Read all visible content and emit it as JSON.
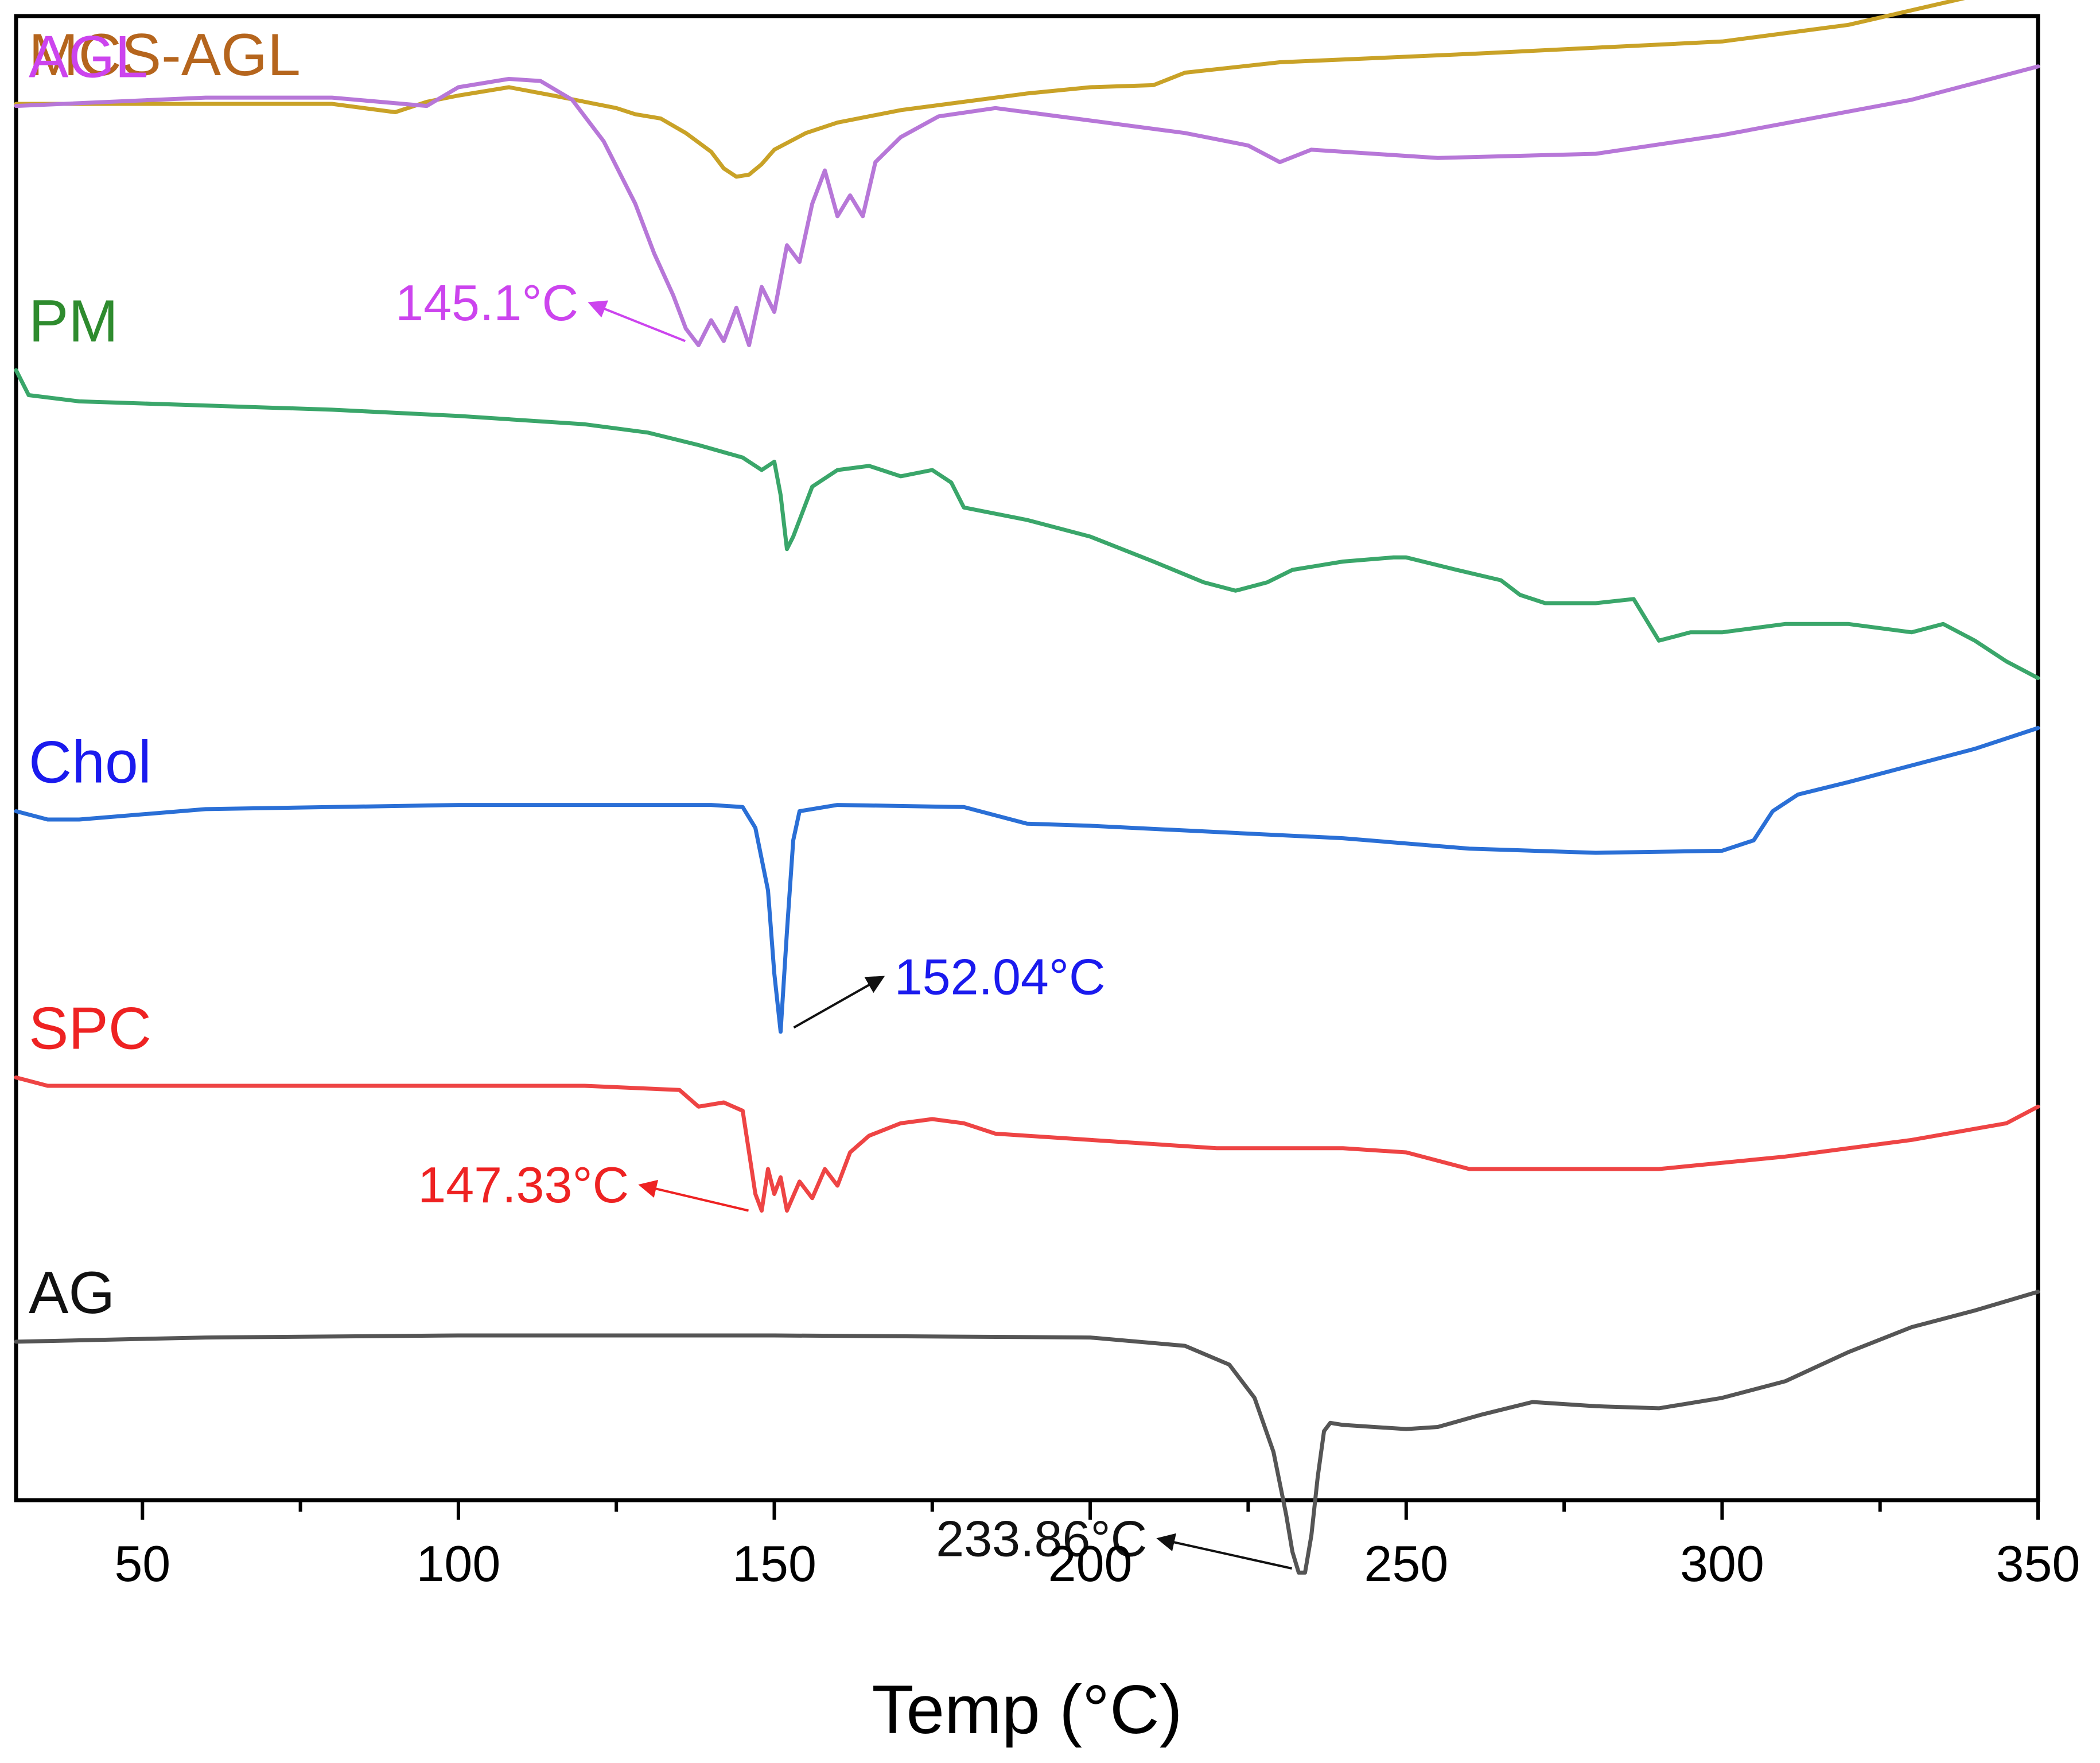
{
  "chart_data": {
    "type": "line",
    "title": "",
    "xlabel": "Temp (°C)",
    "ylabel": "",
    "xlim": [
      30,
      350
    ],
    "xticks": [
      50,
      100,
      150,
      200,
      250,
      300,
      350
    ],
    "yaxis_units": "relative offset (stacked DSC thermograms, no y scale shown)",
    "series": [
      {
        "name": "MCS-AGL",
        "color": "#c9a227",
        "label_color": "#b5651d",
        "points": [
          [
            30,
            0.4
          ],
          [
            80,
            0.4
          ],
          [
            90,
            0.2
          ],
          [
            95,
            0.45
          ],
          [
            100,
            0.6
          ],
          [
            108,
            0.8
          ],
          [
            115,
            0.6
          ],
          [
            120,
            0.45
          ],
          [
            125,
            0.3
          ],
          [
            128,
            0.15
          ],
          [
            132,
            0.05
          ],
          [
            136,
            -0.3
          ],
          [
            140,
            -0.75
          ],
          [
            142,
            -1.15
          ],
          [
            144,
            -1.35
          ],
          [
            146,
            -1.3
          ],
          [
            148,
            -1.05
          ],
          [
            150,
            -0.7
          ],
          [
            155,
            -0.3
          ],
          [
            160,
            -0.05
          ],
          [
            170,
            0.25
          ],
          [
            180,
            0.45
          ],
          [
            190,
            0.65
          ],
          [
            200,
            0.8
          ],
          [
            210,
            0.85
          ],
          [
            215,
            1.15
          ],
          [
            230,
            1.4
          ],
          [
            260,
            1.6
          ],
          [
            280,
            1.75
          ],
          [
            300,
            1.9
          ],
          [
            320,
            2.3
          ],
          [
            340,
            3.0
          ],
          [
            350,
            3.5
          ]
        ]
      },
      {
        "name": "AGL",
        "color": "#b777d8",
        "label_color": "#cc44ee",
        "points": [
          [
            30,
            0.35
          ],
          [
            60,
            0.55
          ],
          [
            80,
            0.55
          ],
          [
            95,
            0.35
          ],
          [
            100,
            0.8
          ],
          [
            108,
            1.0
          ],
          [
            113,
            0.95
          ],
          [
            118,
            0.5
          ],
          [
            123,
            -0.5
          ],
          [
            128,
            -2.0
          ],
          [
            131,
            -3.2
          ],
          [
            134,
            -4.2
          ],
          [
            136,
            -5.0
          ],
          [
            138,
            -5.4
          ],
          [
            140,
            -4.8
          ],
          [
            142,
            -5.3
          ],
          [
            144,
            -4.5
          ],
          [
            146,
            -5.4
          ],
          [
            148,
            -4.0
          ],
          [
            150,
            -4.6
          ],
          [
            152,
            -3.0
          ],
          [
            154,
            -3.4
          ],
          [
            156,
            -2.0
          ],
          [
            158,
            -1.2
          ],
          [
            160,
            -2.3
          ],
          [
            162,
            -1.8
          ],
          [
            164,
            -2.3
          ],
          [
            166,
            -1.0
          ],
          [
            170,
            -0.4
          ],
          [
            176,
            0.1
          ],
          [
            185,
            0.3
          ],
          [
            200,
            0.0
          ],
          [
            215,
            -0.3
          ],
          [
            225,
            -0.6
          ],
          [
            230,
            -1.0
          ],
          [
            235,
            -0.7
          ],
          [
            255,
            -0.9
          ],
          [
            280,
            -0.8
          ],
          [
            300,
            -0.35
          ],
          [
            330,
            0.5
          ],
          [
            350,
            1.3
          ]
        ]
      },
      {
        "name": "PM",
        "color": "#3aa66a",
        "label_color": "#2e8b2e",
        "points": [
          [
            30,
            -6.0
          ],
          [
            32,
            -6.6
          ],
          [
            40,
            -6.75
          ],
          [
            60,
            -6.85
          ],
          [
            80,
            -6.95
          ],
          [
            100,
            -7.1
          ],
          [
            120,
            -7.3
          ],
          [
            130,
            -7.5
          ],
          [
            138,
            -7.8
          ],
          [
            145,
            -8.1
          ],
          [
            148,
            -8.4
          ],
          [
            150,
            -8.2
          ],
          [
            151,
            -9.0
          ],
          [
            152,
            -10.3
          ],
          [
            153,
            -10.0
          ],
          [
            156,
            -8.8
          ],
          [
            160,
            -8.4
          ],
          [
            165,
            -8.3
          ],
          [
            170,
            -8.55
          ],
          [
            175,
            -8.4
          ],
          [
            178,
            -8.7
          ],
          [
            180,
            -9.3
          ],
          [
            190,
            -9.6
          ],
          [
            200,
            -10.0
          ],
          [
            210,
            -10.6
          ],
          [
            218,
            -11.1
          ],
          [
            223,
            -11.3
          ],
          [
            228,
            -11.1
          ],
          [
            232,
            -10.8
          ],
          [
            240,
            -10.6
          ],
          [
            248,
            -10.5
          ],
          [
            250,
            -10.5
          ],
          [
            258,
            -10.8
          ],
          [
            265,
            -11.05
          ],
          [
            268,
            -11.4
          ],
          [
            272,
            -11.6
          ],
          [
            280,
            -11.6
          ],
          [
            286,
            -11.5
          ],
          [
            290,
            -12.5
          ],
          [
            295,
            -12.3
          ],
          [
            300,
            -12.3
          ],
          [
            310,
            -12.1
          ],
          [
            320,
            -12.1
          ],
          [
            330,
            -12.3
          ],
          [
            335,
            -12.1
          ],
          [
            340,
            -12.5
          ],
          [
            345,
            -13.0
          ],
          [
            350,
            -13.4
          ]
        ]
      },
      {
        "name": "Chol",
        "color": "#2a6fd6",
        "label_color": "#1a1aee",
        "points": [
          [
            30,
            -16.6
          ],
          [
            35,
            -16.8
          ],
          [
            40,
            -16.8
          ],
          [
            60,
            -16.55
          ],
          [
            100,
            -16.45
          ],
          [
            140,
            -16.45
          ],
          [
            145,
            -16.5
          ],
          [
            147,
            -17.0
          ],
          [
            149,
            -18.5
          ],
          [
            150,
            -20.5
          ],
          [
            151,
            -21.9
          ],
          [
            152,
            -19.5
          ],
          [
            153,
            -17.3
          ],
          [
            154,
            -16.6
          ],
          [
            160,
            -16.45
          ],
          [
            180,
            -16.5
          ],
          [
            190,
            -16.9
          ],
          [
            200,
            -16.95
          ],
          [
            220,
            -17.1
          ],
          [
            240,
            -17.25
          ],
          [
            260,
            -17.5
          ],
          [
            280,
            -17.6
          ],
          [
            300,
            -17.55
          ],
          [
            305,
            -17.3
          ],
          [
            308,
            -16.6
          ],
          [
            312,
            -16.2
          ],
          [
            320,
            -15.9
          ],
          [
            340,
            -15.1
          ],
          [
            350,
            -14.6
          ]
        ]
      },
      {
        "name": "SPC",
        "color": "#ee4444",
        "label_color": "#ee2222",
        "points": [
          [
            30,
            -23.0
          ],
          [
            35,
            -23.2
          ],
          [
            60,
            -23.2
          ],
          [
            100,
            -23.2
          ],
          [
            120,
            -23.2
          ],
          [
            135,
            -23.3
          ],
          [
            138,
            -23.7
          ],
          [
            142,
            -23.6
          ],
          [
            145,
            -23.8
          ],
          [
            146,
            -24.8
          ],
          [
            147,
            -25.8
          ],
          [
            148,
            -26.2
          ],
          [
            149,
            -25.2
          ],
          [
            150,
            -25.8
          ],
          [
            151,
            -25.4
          ],
          [
            152,
            -26.2
          ],
          [
            154,
            -25.5
          ],
          [
            156,
            -25.9
          ],
          [
            158,
            -25.2
          ],
          [
            160,
            -25.6
          ],
          [
            162,
            -24.8
          ],
          [
            165,
            -24.4
          ],
          [
            170,
            -24.1
          ],
          [
            175,
            -24.0
          ],
          [
            180,
            -24.1
          ],
          [
            185,
            -24.35
          ],
          [
            200,
            -24.5
          ],
          [
            220,
            -24.7
          ],
          [
            240,
            -24.7
          ],
          [
            250,
            -24.8
          ],
          [
            255,
            -25.0
          ],
          [
            260,
            -25.2
          ],
          [
            270,
            -25.2
          ],
          [
            290,
            -25.2
          ],
          [
            310,
            -24.9
          ],
          [
            330,
            -24.5
          ],
          [
            345,
            -24.1
          ],
          [
            350,
            -23.7
          ]
        ]
      },
      {
        "name": "AG",
        "color": "#555555",
        "label_color": "#111111",
        "points": [
          [
            30,
            -29.35
          ],
          [
            60,
            -29.25
          ],
          [
            100,
            -29.2
          ],
          [
            150,
            -29.2
          ],
          [
            200,
            -29.25
          ],
          [
            215,
            -29.45
          ],
          [
            222,
            -29.9
          ],
          [
            226,
            -30.7
          ],
          [
            229,
            -32.0
          ],
          [
            231,
            -33.5
          ],
          [
            232,
            -34.4
          ],
          [
            233,
            -34.9
          ],
          [
            234,
            -34.9
          ],
          [
            235,
            -34.0
          ],
          [
            236,
            -32.6
          ],
          [
            237,
            -31.5
          ],
          [
            238,
            -31.3
          ],
          [
            240,
            -31.35
          ],
          [
            250,
            -31.45
          ],
          [
            255,
            -31.4
          ],
          [
            262,
            -31.1
          ],
          [
            270,
            -30.8
          ],
          [
            280,
            -30.9
          ],
          [
            290,
            -30.95
          ],
          [
            300,
            -30.7
          ],
          [
            310,
            -30.3
          ],
          [
            320,
            -29.6
          ],
          [
            330,
            -29.0
          ],
          [
            340,
            -28.6
          ],
          [
            350,
            -28.15
          ]
        ]
      }
    ],
    "annotations": [
      {
        "text": "145.1°C",
        "color": "#cc44ee",
        "arrow_color": "#cc44ee",
        "points_to": [
          137,
          -5.3
        ],
        "text_at": [
          119,
          -4.8
        ]
      },
      {
        "text": "152.04°C",
        "color": "#1a1aee",
        "arrow_color": "#111111",
        "points_to": [
          152,
          -21.8
        ],
        "text_at": [
          169,
          -21.0
        ]
      },
      {
        "text": "147.33°C",
        "color": "#ee2222",
        "arrow_color": "#ee2222",
        "points_to": [
          147,
          -26.2
        ],
        "text_at": [
          127,
          -26.0
        ]
      },
      {
        "text": "233.86°C",
        "color": "#111111",
        "arrow_color": "#111111",
        "points_to": [
          233,
          -34.8
        ],
        "text_at": [
          209,
          -34.5
        ]
      }
    ]
  }
}
